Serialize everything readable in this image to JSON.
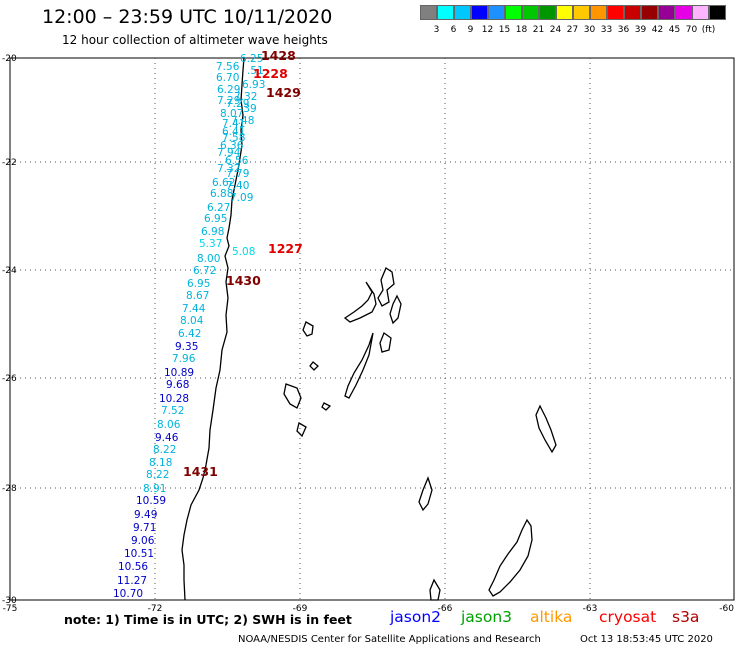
{
  "title": "12:00 – 23:59 UTC 10/11/2020",
  "subtitle": "12 hour collection of altimeter wave heights",
  "legend": {
    "colors": [
      "#808080",
      "#00ffff",
      "#00c8ff",
      "#0000ff",
      "#1e90ff",
      "#00ff00",
      "#00c800",
      "#009600",
      "#ffff00",
      "#ffc800",
      "#ff9600",
      "#ff0000",
      "#c80000",
      "#960000",
      "#960096",
      "#e600e6",
      "#ffb4ff",
      "#000000"
    ],
    "labels": [
      "3",
      "6",
      "9",
      "12",
      "15",
      "18",
      "21",
      "24",
      "27",
      "30",
      "33",
      "36",
      "39",
      "42",
      "45",
      "70",
      "(ft)"
    ]
  },
  "axes": {
    "lat_labels": [
      "-20",
      "-22",
      "-24",
      "-26",
      "-28",
      "-30"
    ],
    "lon_labels": [
      "-75",
      "-72",
      "-69",
      "-66",
      "-63",
      "-60"
    ]
  },
  "passes": [
    {
      "label": "1428",
      "color": "#800000"
    },
    {
      "label": "1228",
      "color": "#e00000"
    },
    {
      "label": "1429",
      "color": "#800000"
    },
    {
      "label": "1227",
      "color": "#e00000"
    },
    {
      "label": "1430",
      "color": "#800000"
    },
    {
      "label": "1431",
      "color": "#800000"
    }
  ],
  "wave_heights": [
    {
      "v": "6.25",
      "c": "#00b4dc"
    },
    {
      "v": "7.56",
      "c": "#00b4dc"
    },
    {
      "v": ".51",
      "c": "#00b4dc"
    },
    {
      "v": "6.70",
      "c": "#00b4dc"
    },
    {
      "v": "6.93",
      "c": "#00b4dc"
    },
    {
      "v": "6.29",
      "c": "#00b4dc"
    },
    {
      "v": "7.29",
      "c": "#00b4dc"
    },
    {
      "v": "7.32",
      "c": "#00b4dc"
    },
    {
      "v": "7.29",
      "c": "#00b4dc"
    },
    {
      "v": ".39",
      "c": "#00b4dc"
    },
    {
      "v": "8.07",
      "c": "#00b4dc"
    },
    {
      "v": "7.48",
      "c": "#00b4dc"
    },
    {
      "v": "7.41",
      "c": "#00b4dc"
    },
    {
      "v": "6.41",
      "c": "#00b4dc"
    },
    {
      "v": "7.58",
      "c": "#00b4dc"
    },
    {
      "v": "6.36",
      "c": "#00b4dc"
    },
    {
      "v": "7.94",
      "c": "#00b4dc"
    },
    {
      "v": "6.56",
      "c": "#00b4dc"
    },
    {
      "v": "7.32",
      "c": "#00b4dc"
    },
    {
      "v": "7.79",
      "c": "#00b4dc"
    },
    {
      "v": "6.62",
      "c": "#00b4dc"
    },
    {
      "v": "7.40",
      "c": "#00b4dc"
    },
    {
      "v": "6.88",
      "c": "#00b4dc"
    },
    {
      "v": "7.09",
      "c": "#00b4dc"
    },
    {
      "v": "6.27",
      "c": "#00b4dc"
    },
    {
      "v": "6.95",
      "c": "#00b4dc"
    },
    {
      "v": "6.98",
      "c": "#00b4dc"
    },
    {
      "v": "5.37",
      "c": "#00d7ee"
    },
    {
      "v": "5.08",
      "c": "#00d7ee"
    },
    {
      "v": "8.00",
      "c": "#00b4dc"
    },
    {
      "v": "6.72",
      "c": "#00b4dc"
    },
    {
      "v": "6.95",
      "c": "#00b4dc"
    },
    {
      "v": "8.67",
      "c": "#00b4dc"
    },
    {
      "v": "7.44",
      "c": "#00b4dc"
    },
    {
      "v": "8.04",
      "c": "#00b4dc"
    },
    {
      "v": "6.42",
      "c": "#00b4dc"
    },
    {
      "v": "9.35",
      "c": "#0000c8"
    },
    {
      "v": "7.96",
      "c": "#00b4dc"
    },
    {
      "v": "10.89",
      "c": "#0000c8"
    },
    {
      "v": "9.68",
      "c": "#0000c8"
    },
    {
      "v": "10.28",
      "c": "#0000c8"
    },
    {
      "v": "7.52",
      "c": "#00b4dc"
    },
    {
      "v": "8.06",
      "c": "#00b4dc"
    },
    {
      "v": "9.46",
      "c": "#0000c8"
    },
    {
      "v": "8.22",
      "c": "#00b4dc"
    },
    {
      "v": "8.18",
      "c": "#00b4dc"
    },
    {
      "v": "8.22",
      "c": "#00b4dc"
    },
    {
      "v": "8.91",
      "c": "#00b4dc"
    },
    {
      "v": "10.59",
      "c": "#0000c8"
    },
    {
      "v": "9.49",
      "c": "#0000c8"
    },
    {
      "v": "9.71",
      "c": "#0000c8"
    },
    {
      "v": "9.06",
      "c": "#0000c8"
    },
    {
      "v": "10.51",
      "c": "#0000c8"
    },
    {
      "v": "10.56",
      "c": "#0000c8"
    },
    {
      "v": "11.27",
      "c": "#0000c8"
    },
    {
      "v": "10.70",
      "c": "#0000c8"
    }
  ],
  "note": "note: 1) Time is in UTC; 2) SWH is in feet",
  "satellites": [
    {
      "name": "jason2",
      "color": "#0000ff"
    },
    {
      "name": "jason3",
      "color": "#00a000"
    },
    {
      "name": "altika",
      "color": "#ff9900"
    },
    {
      "name": "cryosat",
      "color": "#ff0000"
    },
    {
      "name": "s3a",
      "color": "#b00000"
    }
  ],
  "credit": "NOAA/NESDIS Center for Satellite Applications and Research",
  "timestamp": "Oct 13 18:53:45 UTC 2020"
}
